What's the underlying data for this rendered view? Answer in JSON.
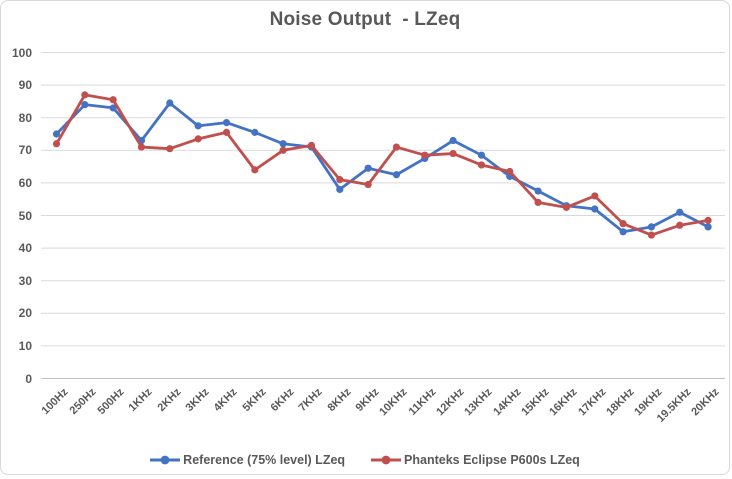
{
  "chart_data": {
    "type": "line",
    "title": "Noise Output  - LZeq",
    "categories": [
      "100Hz",
      "250Hz",
      "500Hz",
      "1KHz",
      "2KHz",
      "3KHz",
      "4KHz",
      "5KHz",
      "6KHz",
      "7KHz",
      "8KHz",
      "9KHz",
      "10KHz",
      "11KHz",
      "12KHz",
      "13KHz",
      "14KHz",
      "15KHz",
      "16KHz",
      "17KHz",
      "18KHz",
      "19KHz",
      "19.5KHz",
      "20KHz"
    ],
    "series": [
      {
        "name": "Reference (75% level) LZeq",
        "color": "#4472C4",
        "values": [
          75,
          84,
          83,
          73,
          84.5,
          77.5,
          78.5,
          75.5,
          72,
          71,
          58,
          64.5,
          62.5,
          67.5,
          73,
          68.5,
          62,
          57.5,
          53,
          52,
          45,
          46.5,
          51,
          46.5
        ]
      },
      {
        "name": "Phanteks Eclipse P600s LZeq",
        "color": "#C0504D",
        "values": [
          72,
          87,
          85.5,
          71,
          70.5,
          73.5,
          75.5,
          64,
          70,
          71.5,
          61,
          59.5,
          71,
          68.5,
          69,
          65.5,
          63.5,
          54,
          52.5,
          56,
          47.5,
          44,
          47,
          48.5
        ]
      }
    ],
    "xlabel": "",
    "ylabel": "",
    "ylim": [
      0,
      100
    ],
    "ytick_step": 10,
    "grid": true,
    "legend_position": "bottom",
    "marker": "circle"
  },
  "colors": {
    "text": "#595959",
    "gridline": "#D9D9D9",
    "axis_line": "#C0C0C0",
    "background": "#FFFFFF",
    "border": "#D9D9D9"
  }
}
